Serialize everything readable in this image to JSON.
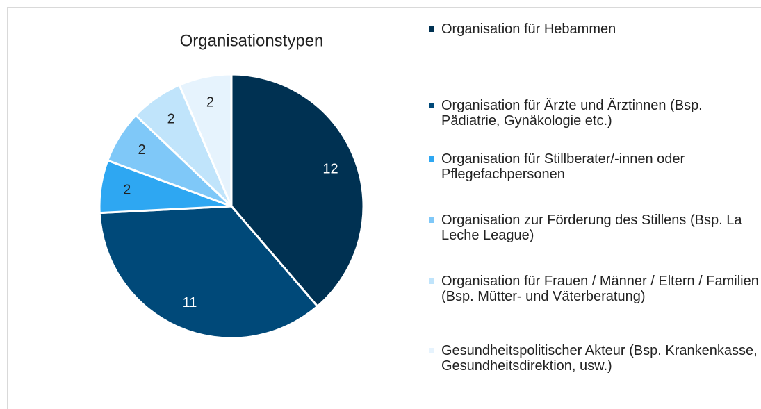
{
  "chart_data": {
    "type": "pie",
    "title": "Organisationstypen",
    "categories": [
      "Organisation für Hebammen",
      "Organisation für Ärzte und Ärztinnen (Bsp. Pädiatrie, Gynäkologie etc.)",
      "Organisation für Stillberater/-innen oder Pflegefachpersonen",
      "Organisation zur Förderung des Stillens (Bsp. La Leche League)",
      "Organisation für Frauen / Männer / Eltern / Familien (Bsp. Mütter- und Väterberatung)",
      "Gesundheitspolitischer Akteur (Bsp. Krankenkasse, Gesundheitsdirektion, usw.)"
    ],
    "values": [
      12,
      11,
      2,
      2,
      2,
      2
    ],
    "colors": [
      "#003152",
      "#004979",
      "#2ea7f2",
      "#7fc8f8",
      "#c0e4fb",
      "#e6f3fd"
    ],
    "legend": "right"
  }
}
